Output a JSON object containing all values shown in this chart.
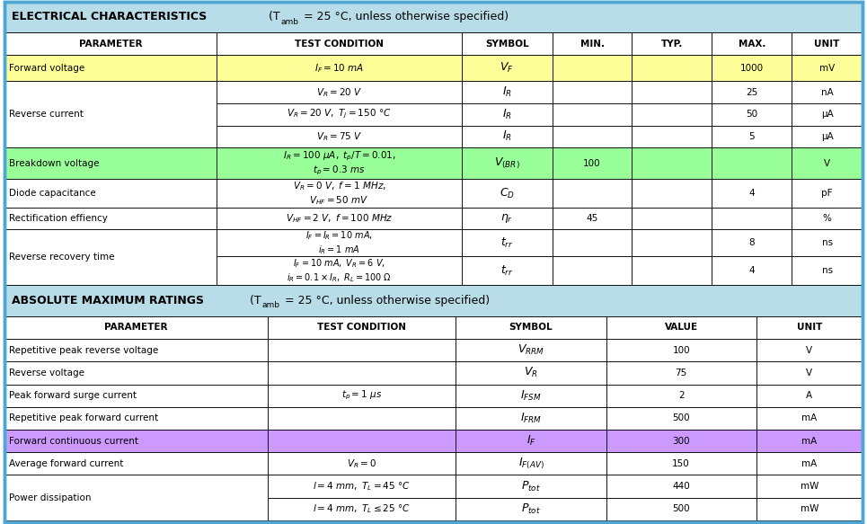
{
  "fig_width": 9.65,
  "fig_height": 5.83,
  "dpi": 100,
  "border_color": "#4da6d4",
  "header_bg": "#b8dde8",
  "white_bg": "#ffffff",
  "yellow_bg": "#ffff99",
  "green_bg": "#99ff99",
  "purple_bg": "#cc99ff",
  "sec1_title_bold": "ELECTRICAL CHARACTERISTICS",
  "sec1_title_normal": " (T",
  "sec1_title_sub": "amb",
  "sec1_title_end": " = 25 °C, unless otherwise specified)",
  "sec2_title_bold": "ABSOLUTE MAXIMUM RATINGS",
  "sec2_title_normal": " (T",
  "sec2_title_sub": "amb",
  "sec2_title_end": " = 25 °C, unless otherwise specified)",
  "col1_headers": [
    "PARAMETER",
    "TEST CONDITION",
    "SYMBOL",
    "MIN.",
    "TYP.",
    "MAX.",
    "UNIT"
  ],
  "col2_headers": [
    "PARAMETER",
    "TEST CONDITION",
    "SYMBOL",
    "VALUE",
    "UNIT"
  ],
  "cw1": [
    0.218,
    0.252,
    0.093,
    0.082,
    0.082,
    0.082,
    0.073
  ],
  "cw2": [
    0.295,
    0.21,
    0.168,
    0.168,
    0.119
  ]
}
